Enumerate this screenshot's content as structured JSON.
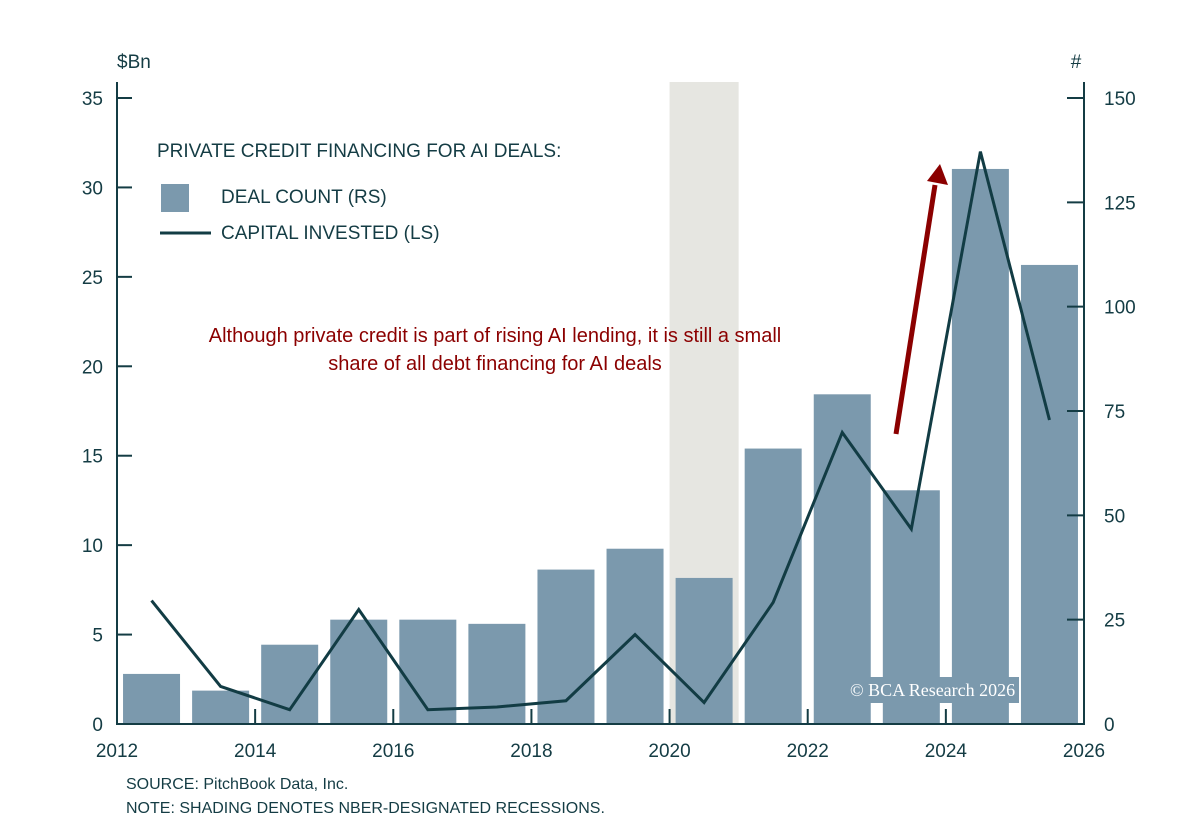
{
  "chart_data": {
    "type": "bar+line",
    "legend_title": "PRIVATE CREDIT FINANCING FOR AI DEALS:",
    "legend_placement": "top-left",
    "left_axis_label": "$Bn",
    "right_axis_label": "#",
    "xlim": [
      2012,
      2026
    ],
    "x_ticks": [
      "2012",
      "2014",
      "2016",
      "2018",
      "2020",
      "2022",
      "2024",
      "2026"
    ],
    "ylim_left": [
      0,
      35
    ],
    "y_ticks_left": [
      "0",
      "5",
      "10",
      "15",
      "20",
      "25",
      "30",
      "35"
    ],
    "ylim_right": [
      0,
      150
    ],
    "y_ticks_right": [
      "0",
      "25",
      "50",
      "75",
      "100",
      "125",
      "150"
    ],
    "categories": [
      2012,
      2013,
      2014,
      2015,
      2016,
      2017,
      2018,
      2019,
      2020,
      2021,
      2022,
      2023,
      2024,
      2025
    ],
    "series": [
      {
        "name": "DEAL COUNT (RS)",
        "type": "bar",
        "axis": "right",
        "color": "#7b99ad",
        "values": [
          12,
          8,
          19,
          25,
          25,
          24,
          37,
          42,
          35,
          66,
          79,
          56,
          133,
          110
        ]
      },
      {
        "name": "CAPITAL INVESTED (LS)",
        "type": "line",
        "axis": "left",
        "color": "#123c44",
        "values": [
          6.9,
          2.1,
          0.8,
          6.4,
          0.8,
          0.95,
          1.3,
          5.0,
          1.2,
          6.8,
          16.3,
          10.9,
          32.0,
          17.0
        ]
      }
    ],
    "recession_shading": [
      [
        2020.0,
        2021.0
      ]
    ],
    "recession_color": "#e6e6e1",
    "annotation": "Although private credit is part of rising AI lending, it is still a small share of all debt financing for AI deals",
    "annotation_color": "#8b0000",
    "arrow_color": "#8b0000",
    "grid": false
  },
  "watermark": "© BCA Research 2026",
  "source": "SOURCE: PitchBook Data, Inc.",
  "note": "NOTE: SHADING DENOTES NBER-DESIGNATED RECESSIONS."
}
